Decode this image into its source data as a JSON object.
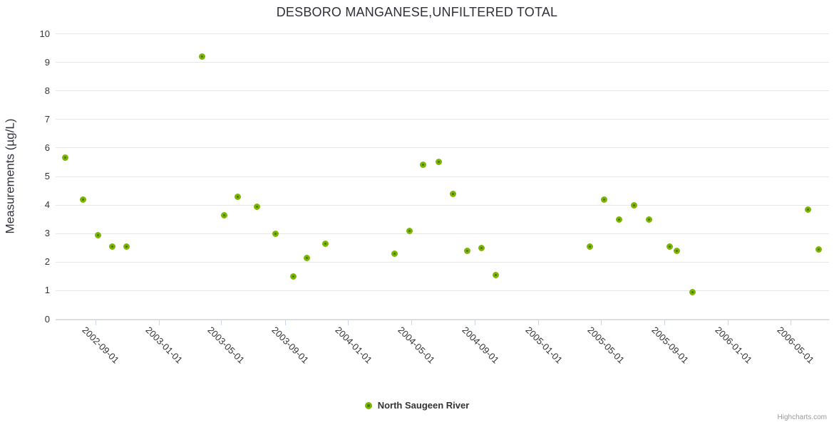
{
  "title": "DESBORO MANGANESE,UNFILTERED TOTAL",
  "legend": {
    "series_label": "North Saugeen River"
  },
  "credits": "Highcharts.com",
  "colors": {
    "point_ring": "#7cb504",
    "point_fill": "#4a7403",
    "grid": "#e6e6e6",
    "axis_line": "#ccd6eb",
    "label_text": "#333333",
    "credits_text": "#999999"
  },
  "chart_data": {
    "type": "scatter",
    "title": "DESBORO MANGANESE,UNFILTERED TOTAL",
    "xlabel": "",
    "ylabel": "Measurements (µg/L)",
    "ylim": [
      0,
      10
    ],
    "y_ticks": [
      0,
      1,
      2,
      3,
      4,
      5,
      6,
      7,
      8,
      9,
      10
    ],
    "x_ticks": [
      "2002-09-01",
      "2003-01-01",
      "2003-05-01",
      "2003-09-01",
      "2004-01-01",
      "2004-05-01",
      "2004-09-01",
      "2005-01-01",
      "2005-05-01",
      "2005-09-01",
      "2006-01-01",
      "2006-05-01"
    ],
    "xlim": [
      "2002-06-16",
      "2006-07-14"
    ],
    "grid": "horizontal",
    "legend_position": "bottom-center",
    "series": [
      {
        "name": "North Saugeen River",
        "color": "#7cb504",
        "points": [
          [
            "2002-07-04",
            5.65
          ],
          [
            "2002-08-08",
            4.2
          ],
          [
            "2002-09-05",
            2.95
          ],
          [
            "2002-10-03",
            2.55
          ],
          [
            "2002-10-31",
            2.55
          ],
          [
            "2003-03-25",
            9.2
          ],
          [
            "2003-05-07",
            3.65
          ],
          [
            "2003-06-02",
            4.3
          ],
          [
            "2003-07-09",
            3.95
          ],
          [
            "2003-08-13",
            3.0
          ],
          [
            "2003-09-16",
            1.5
          ],
          [
            "2003-10-13",
            2.15
          ],
          [
            "2003-11-17",
            2.65
          ],
          [
            "2004-03-29",
            2.3
          ],
          [
            "2004-04-27",
            3.1
          ],
          [
            "2004-05-23",
            5.4
          ],
          [
            "2004-06-22",
            5.5
          ],
          [
            "2004-07-20",
            4.4
          ],
          [
            "2004-08-17",
            2.4
          ],
          [
            "2004-09-13",
            2.5
          ],
          [
            "2004-10-11",
            1.55
          ],
          [
            "2005-04-10",
            2.55
          ],
          [
            "2005-05-07",
            4.2
          ],
          [
            "2005-06-05",
            3.5
          ],
          [
            "2005-07-04",
            4.0
          ],
          [
            "2005-08-02",
            3.5
          ],
          [
            "2005-09-10",
            2.55
          ],
          [
            "2005-09-24",
            2.4
          ],
          [
            "2005-10-24",
            0.95
          ],
          [
            "2006-06-04",
            3.85
          ],
          [
            "2006-06-24",
            2.45
          ]
        ]
      }
    ]
  }
}
